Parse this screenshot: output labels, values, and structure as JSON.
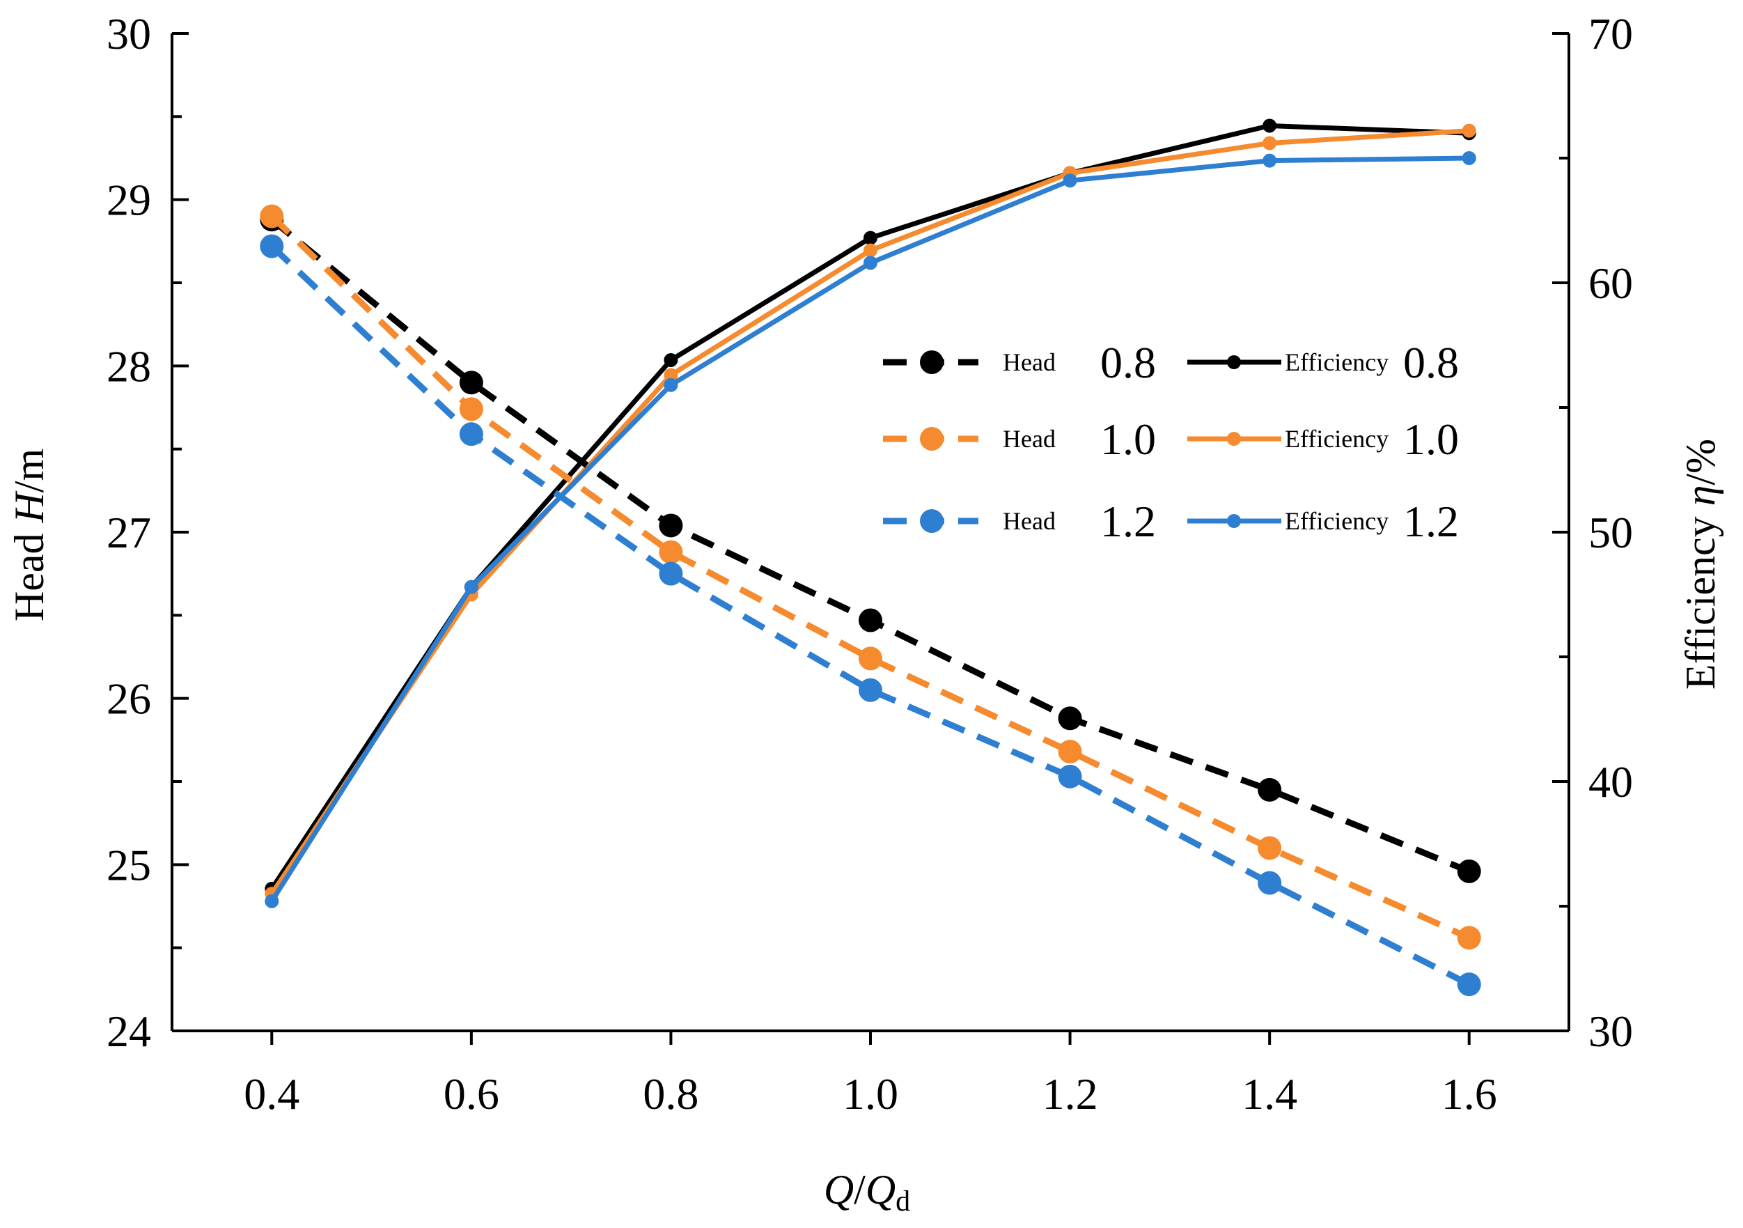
{
  "chart_data": {
    "type": "line",
    "x": [
      0.4,
      0.6,
      0.8,
      1.0,
      1.2,
      1.4,
      1.6
    ],
    "x_tick_labels": [
      "0.4",
      "0.6",
      "0.8",
      "1.0",
      "1.2",
      "1.4",
      "1.6"
    ],
    "xlim": [
      0.3,
      1.7
    ],
    "xlabel": {
      "main": "Q",
      "sep": "/",
      "main2": "Q",
      "sub": "d"
    },
    "y_left": {
      "label_prefix": "Head ",
      "label_var": "H",
      "label_unit": "/m",
      "lim": [
        24,
        30
      ],
      "ticks": [
        "24",
        "25",
        "26",
        "27",
        "28",
        "29",
        "30"
      ]
    },
    "y_right": {
      "label_prefix": "Efficiency ",
      "label_var": "η",
      "label_unit": "/%",
      "lim": [
        30,
        70
      ],
      "ticks": [
        "30",
        "40",
        "50",
        "60",
        "70"
      ]
    },
    "series": [
      {
        "name": "Head 0.8",
        "legend_text": "Head",
        "legend_value": "0.8",
        "axis": "left",
        "style": "dashed",
        "color": "#000000",
        "values": [
          28.88,
          27.9,
          27.04,
          26.47,
          25.88,
          25.45,
          24.96
        ]
      },
      {
        "name": "Head 1.0",
        "legend_text": "Head",
        "legend_value": "1.0",
        "axis": "left",
        "style": "dashed",
        "color": "#F58A2E",
        "values": [
          28.9,
          27.74,
          26.88,
          26.24,
          25.68,
          25.1,
          24.56
        ]
      },
      {
        "name": "Head 1.2",
        "legend_text": "Head",
        "legend_value": "1.2",
        "axis": "left",
        "style": "dashed",
        "color": "#2E7FD1",
        "values": [
          28.72,
          27.59,
          26.75,
          26.05,
          25.53,
          24.89,
          24.28
        ]
      },
      {
        "name": "Efficiency 0.8",
        "legend_text": "Efficiency",
        "legend_value": "0.8",
        "axis": "right",
        "style": "solid",
        "color": "#000000",
        "values": [
          35.7,
          47.8,
          56.9,
          61.8,
          64.4,
          66.3,
          66.0
        ]
      },
      {
        "name": "Efficiency 1.0",
        "legend_text": "Efficiency",
        "legend_value": "1.0",
        "axis": "right",
        "style": "solid",
        "color": "#F58A2E",
        "values": [
          35.5,
          47.5,
          56.3,
          61.3,
          64.4,
          65.6,
          66.1
        ]
      },
      {
        "name": "Efficiency 1.2",
        "legend_text": "Efficiency",
        "legend_value": "1.2",
        "axis": "right",
        "style": "solid",
        "color": "#2E7FD1",
        "values": [
          35.2,
          47.8,
          55.9,
          60.8,
          64.1,
          64.9,
          65.0
        ]
      }
    ],
    "legend_position": "center-right"
  }
}
